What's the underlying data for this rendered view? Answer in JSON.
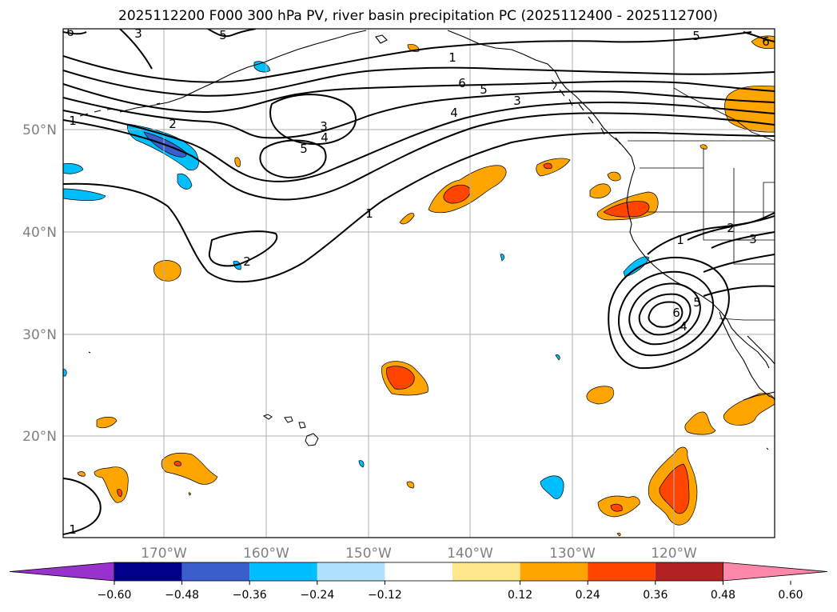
{
  "title": "2025112200 F000 300 hPa PV, river basin precipitation PC (2025112400 - 2025112700)",
  "lat_labels": [
    "50°N",
    "40°N",
    "30°N",
    "20°N"
  ],
  "lon_labels": [
    "170°W",
    "160°W",
    "150°W",
    "140°W",
    "130°W",
    "120°W"
  ],
  "contour_labels": {
    "c1_top": "1",
    "c6_top": "6",
    "c5_top": "5",
    "c4_top": "4",
    "c3_top": "3",
    "c1_left": "1",
    "c2_left": "2",
    "c3_low": "3",
    "c4_low": "4",
    "c5_low": "5",
    "c1_mid": "1",
    "c2_mid": "2",
    "c1_sw": "1",
    "c5_ne": "5",
    "c6_ne": "6",
    "c3_nw": "3",
    "c5_nw": "5",
    "c6_nw": "6",
    "c1_cal": "1",
    "c2_cal": "2",
    "c3_cal": "3",
    "c6_low": "6",
    "c5_low2": "5",
    "c4_low2": "4"
  },
  "colorbar": {
    "ticks": [
      "−0.60",
      "−0.48",
      "−0.36",
      "−0.24",
      "−0.12",
      "0.12",
      "0.24",
      "0.36",
      "0.48",
      "0.60"
    ],
    "colors": [
      "#9932cc",
      "#00008b",
      "#3a5fcd",
      "#00bfff",
      "#b0e2ff",
      "#ffffff",
      "#ffe88c",
      "#ffa500",
      "#ff4500",
      "#b22222",
      "#ff88aa"
    ]
  },
  "colors": {
    "orange": "#ffa500",
    "red_orange": "#ff4500",
    "deep_sky_blue": "#00bfff",
    "royal_blue": "#3a5fcd",
    "grid": "#b0b0b0"
  }
}
